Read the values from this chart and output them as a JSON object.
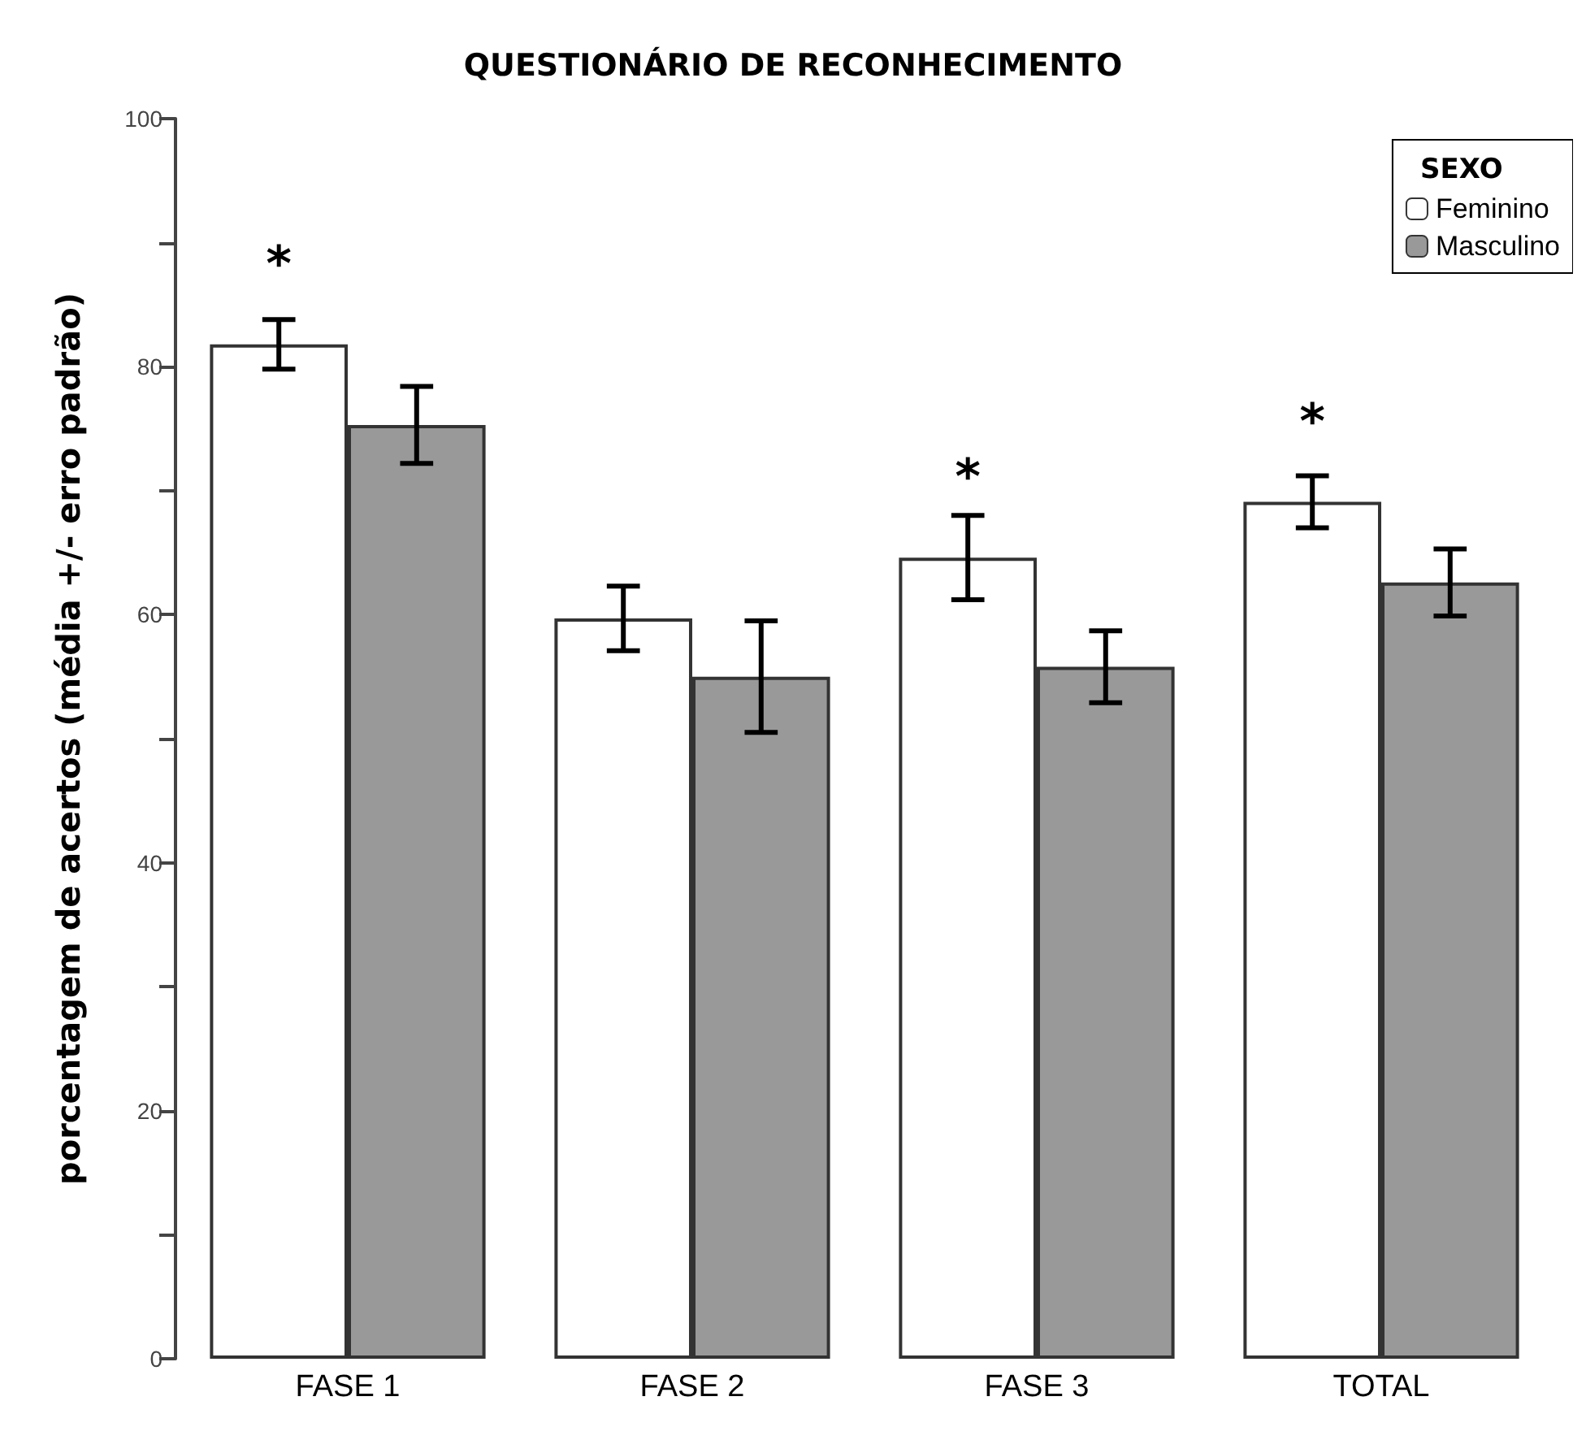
{
  "chart_data": {
    "type": "bar",
    "title": "QUESTIONÁRIO DE RECONHECIMENTO",
    "ylabel": "porcentagem de acertos (média +/- erro padrão)",
    "legend_title": "SEXO",
    "legend": "top right",
    "grid": false,
    "categories": [
      "FASE 1",
      "FASE 2",
      "FASE 3",
      "TOTAL"
    ],
    "series": [
      {
        "name": "Feminino",
        "color": "#ffffff",
        "values": [
          81.8,
          59.7,
          64.6,
          69.1
        ],
        "errors": [
          2.0,
          2.6,
          3.4,
          2.1
        ],
        "value_labels": [
          "*",
          null,
          "*",
          "*"
        ]
      },
      {
        "name": "Masculino",
        "color": "#999999",
        "values": [
          75.3,
          55.0,
          55.8,
          62.6
        ],
        "errors": [
          3.1,
          4.5,
          2.9,
          2.7
        ]
      }
    ],
    "ylim": [
      0,
      100
    ],
    "yticks": [
      0,
      {
        "value": 10,
        "label": null
      },
      20,
      {
        "value": 30,
        "label": null
      },
      40,
      {
        "value": 50,
        "label": null
      },
      60,
      {
        "value": 70,
        "label": null
      },
      80,
      {
        "value": 90,
        "label": null
      },
      100
    ]
  }
}
